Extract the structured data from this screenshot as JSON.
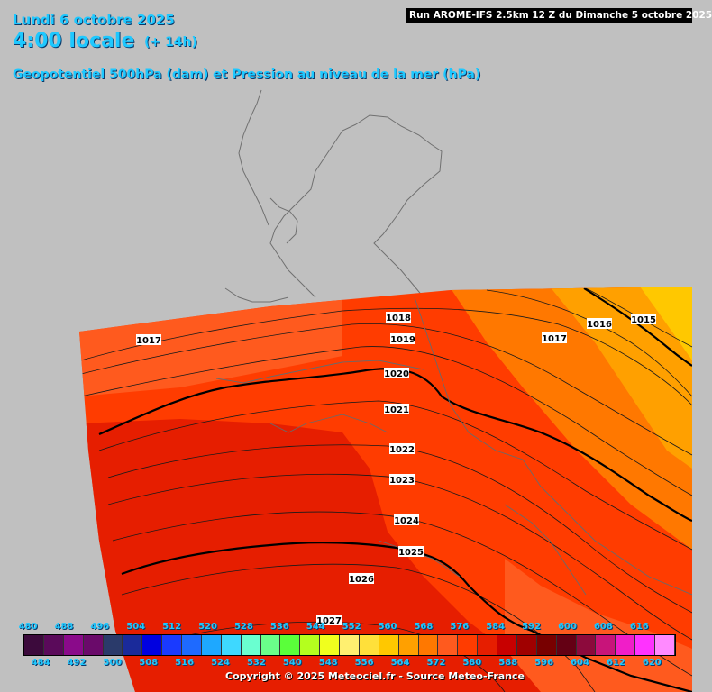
{
  "header": {
    "date": "Lundi 6 octobre 2025",
    "hour": "4:00 locale",
    "offset": "(+ 14h)",
    "subtitle": "Geopotentiel 500hPa (dam) et Pression au niveau de la mer (hPa)",
    "run": "Run AROME-IFS 2.5km 12 Z du Dimanche 5 octobre 2025"
  },
  "isobar_labels": [
    "1015",
    "1016",
    "1017",
    "1017",
    "1018",
    "1019",
    "1020",
    "1021",
    "1022",
    "1023",
    "1024",
    "1025",
    "1026",
    "1027"
  ],
  "legend": {
    "top_values": [
      "480",
      "488",
      "496",
      "504",
      "512",
      "520",
      "528",
      "536",
      "544",
      "552",
      "560",
      "568",
      "576",
      "584",
      "592",
      "600",
      "608",
      "616"
    ],
    "bottom_values": [
      "484",
      "492",
      "500",
      "508",
      "516",
      "524",
      "532",
      "540",
      "548",
      "556",
      "564",
      "572",
      "580",
      "588",
      "596",
      "604",
      "612",
      "620"
    ],
    "colors": [
      "#3c0a3c",
      "#5a0a5a",
      "#8a0a8a",
      "#6a0a6a",
      "#2a3a6a",
      "#1a2a9a",
      "#0000e0",
      "#1a3aff",
      "#1e6aff",
      "#1ea8ff",
      "#3ed8ff",
      "#6affd0",
      "#6aff8a",
      "#5aff3a",
      "#b4ff1e",
      "#f0ff1e",
      "#fff070",
      "#ffe03a",
      "#ffc800",
      "#ffa000",
      "#ff7800",
      "#ff5a1e",
      "#ff3c00",
      "#e61e00",
      "#c80000",
      "#a00000",
      "#780000",
      "#640014",
      "#8c0a3c",
      "#c8147a",
      "#f01ec8",
      "#ff32ff",
      "#ff8aff"
    ]
  },
  "copyright": "Copyright © 2025 Meteociel.fr - Source Meteo-France"
}
